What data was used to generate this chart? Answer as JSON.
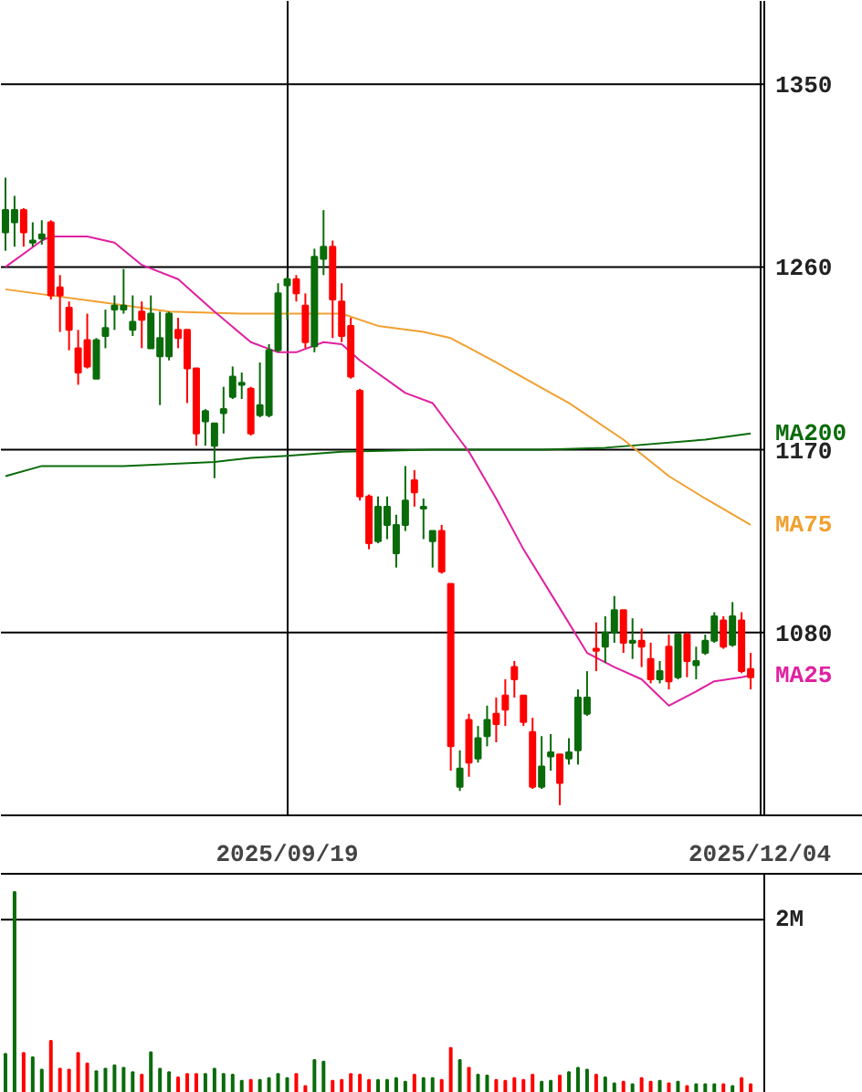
{
  "chart_data": [
    {
      "type": "candlestick",
      "ylim": [
        990,
        1391
      ],
      "yticks": [
        1080,
        1170,
        1260,
        1350
      ],
      "grid": true,
      "categories": [
        null,
        null,
        null,
        null,
        null,
        null,
        null,
        null,
        null,
        null,
        null,
        null,
        null,
        null,
        null,
        null,
        null,
        null,
        null,
        null,
        null,
        null,
        null,
        null,
        null,
        null,
        null,
        null,
        null,
        null,
        null,
        "2025/09/19",
        null,
        null,
        null,
        null,
        null,
        null,
        null,
        null,
        null,
        null,
        null,
        null,
        null,
        null,
        null,
        null,
        null,
        null,
        null,
        null,
        null,
        null,
        null,
        null,
        null,
        null,
        null,
        null,
        null,
        null,
        null,
        null,
        null,
        null,
        null,
        null,
        null,
        null,
        null,
        null,
        null,
        null,
        null,
        null,
        null,
        null,
        null,
        null,
        null,
        null,
        null,
        "2025/12/04"
      ],
      "ohlc": [
        [
          1277,
          1304,
          1268,
          1288
        ],
        [
          1282,
          1295,
          1270,
          1288
        ],
        [
          1288,
          1289,
          1270,
          1277
        ],
        [
          1272,
          1282,
          1270,
          1273
        ],
        [
          1274,
          1283,
          1271,
          1276
        ],
        [
          1282,
          1283,
          1244,
          1246
        ],
        [
          1250,
          1256,
          1228,
          1246
        ],
        [
          1240,
          1243,
          1219,
          1229
        ],
        [
          1220,
          1229,
          1202,
          1208
        ],
        [
          1224,
          1237,
          1210,
          1211
        ],
        [
          1205,
          1225,
          1205,
          1224
        ],
        [
          1226,
          1239,
          1220,
          1230
        ],
        [
          1239,
          1246,
          1229,
          1241
        ],
        [
          1239,
          1259,
          1237,
          1241
        ],
        [
          1229,
          1246,
          1226,
          1233
        ],
        [
          1238,
          1243,
          1220,
          1234
        ],
        [
          1220,
          1246,
          1220,
          1237
        ],
        [
          1216,
          1238,
          1192,
          1225
        ],
        [
          1216,
          1238,
          1214,
          1237
        ],
        [
          1229,
          1235,
          1220,
          1225
        ],
        [
          1229,
          1229,
          1193,
          1210
        ],
        [
          1210,
          1210,
          1172,
          1178
        ],
        [
          1184,
          1190,
          1172,
          1189
        ],
        [
          1172,
          1183,
          1156,
          1183
        ],
        [
          1188,
          1201,
          1178,
          1190
        ],
        [
          1196,
          1211,
          1195,
          1206
        ],
        [
          1202,
          1208,
          1195,
          1203
        ],
        [
          1200,
          1201,
          1177,
          1178
        ],
        [
          1187,
          1213,
          1186,
          1192
        ],
        [
          1187,
          1222,
          1186,
          1219
        ],
        [
          1219,
          1252,
          1218,
          1247
        ],
        [
          1251,
          1255,
          1234,
          1254
        ],
        [
          1254,
          1256,
          1243,
          1247
        ],
        [
          1241,
          1247,
          1220,
          1223
        ],
        [
          1221,
          1269,
          1218,
          1265
        ],
        [
          1264,
          1288,
          1256,
          1270
        ],
        [
          1270,
          1273,
          1225,
          1244
        ],
        [
          1243,
          1252,
          1223,
          1226
        ],
        [
          1231,
          1235,
          1205,
          1206
        ],
        [
          1199,
          1200,
          1145,
          1147
        ],
        [
          1147,
          1148,
          1121,
          1124
        ],
        [
          1125,
          1147,
          1124,
          1142
        ],
        [
          1133,
          1147,
          1126,
          1142
        ],
        [
          1119,
          1138,
          1112,
          1133
        ],
        [
          1133,
          1162,
          1130,
          1145
        ],
        [
          1155,
          1160,
          1142,
          1149
        ],
        [
          1141,
          1146,
          1126,
          1142
        ],
        [
          1125,
          1130,
          1112,
          1130
        ],
        [
          1130,
          1133,
          1109,
          1110
        ],
        [
          1104,
          1104,
          1012,
          1024
        ],
        [
          1004,
          1022,
          1002,
          1013
        ],
        [
          1037,
          1040,
          1009,
          1016
        ],
        [
          1018,
          1034,
          1016,
          1028
        ],
        [
          1029,
          1044,
          1024,
          1037
        ],
        [
          1040,
          1048,
          1026,
          1035
        ],
        [
          1049,
          1057,
          1034,
          1042
        ],
        [
          1063,
          1066,
          1048,
          1057
        ],
        [
          1049,
          1049,
          1034,
          1036
        ],
        [
          1031,
          1038,
          1003,
          1004
        ],
        [
          1004,
          1029,
          1003,
          1014
        ],
        [
          1019,
          1030,
          1012,
          1021
        ],
        [
          1020,
          1020,
          995,
          1006
        ],
        [
          1018,
          1028,
          1015,
          1021
        ],
        [
          1022,
          1052,
          1015,
          1048
        ],
        [
          1040,
          1061,
          1039,
          1048
        ],
        [
          1072,
          1085,
          1061,
          1071
        ],
        [
          1073,
          1088,
          1065,
          1080
        ],
        [
          1080,
          1098,
          1075,
          1091
        ],
        [
          1091,
          1091,
          1070,
          1075
        ],
        [
          1075,
          1087,
          1067,
          1076
        ],
        [
          1076,
          1082,
          1063,
          1073
        ],
        [
          1067,
          1075,
          1055,
          1057
        ],
        [
          1057,
          1066,
          1055,
          1061
        ],
        [
          1073,
          1079,
          1052,
          1056
        ],
        [
          1058,
          1079,
          1057,
          1079
        ],
        [
          1079,
          1080,
          1058,
          1066
        ],
        [
          1064,
          1073,
          1057,
          1066
        ],
        [
          1070,
          1079,
          1069,
          1076
        ],
        [
          1076,
          1090,
          1075,
          1088
        ],
        [
          1086,
          1088,
          1072,
          1073
        ],
        [
          1074,
          1095,
          1073,
          1088
        ],
        [
          1086,
          1090,
          1060,
          1061
        ],
        [
          1062,
          1070,
          1052,
          1058
        ],
        null
      ],
      "colors": [
        "#0a6b0a",
        "#0a6b0a",
        "#ff0000",
        "#0a6b0a",
        "#0a6b0a",
        "#ff0000",
        "#ff0000",
        "#ff0000",
        "#ff0000",
        "#ff0000",
        "#0a6b0a",
        "#0a6b0a",
        "#0a6b0a",
        "#0a6b0a",
        "#0a6b0a",
        "#ff0000",
        "#0a6b0a",
        "#0a6b0a",
        "#0a6b0a",
        "#ff0000",
        "#ff0000",
        "#ff0000",
        "#0a6b0a",
        "#0a6b0a",
        "#0a6b0a",
        "#0a6b0a",
        "#0a6b0a",
        "#ff0000",
        "#0a6b0a",
        "#0a6b0a",
        "#0a6b0a",
        "#0a6b0a",
        "#ff0000",
        "#ff0000",
        "#0a6b0a",
        "#0a6b0a",
        "#ff0000",
        "#ff0000",
        "#ff0000",
        "#ff0000",
        "#ff0000",
        "#0a6b0a",
        "#0a6b0a",
        "#0a6b0a",
        "#0a6b0a",
        "#ff0000",
        "#0a6b0a",
        "#0a6b0a",
        "#ff0000",
        "#ff0000",
        "#0a6b0a",
        "#ff0000",
        "#0a6b0a",
        "#0a6b0a",
        "#ff0000",
        "#ff0000",
        "#ff0000",
        "#ff0000",
        "#ff0000",
        "#0a6b0a",
        "#0a6b0a",
        "#ff0000",
        "#0a6b0a",
        "#0a6b0a",
        "#0a6b0a",
        "#ff0000",
        "#0a6b0a",
        "#0a6b0a",
        "#ff0000",
        "#0a6b0a",
        "#ff0000",
        "#ff0000",
        "#0a6b0a",
        "#ff0000",
        "#0a6b0a",
        "#ff0000",
        "#0a6b0a",
        "#0a6b0a",
        "#0a6b0a",
        "#ff0000",
        "#0a6b0a",
        "#ff0000",
        "#ff0000",
        null
      ],
      "series": [
        {
          "type": "line",
          "name": "MA200",
          "color": "#0a6b0a",
          "values": [
            1157,
            null,
            null,
            null,
            1162,
            null,
            null,
            null,
            null,
            null,
            null,
            null,
            null,
            1162,
            null,
            null,
            null,
            null,
            null,
            null,
            null,
            null,
            null,
            1164,
            null,
            null,
            null,
            1166,
            null,
            null,
            null,
            1167,
            null,
            null,
            null,
            null,
            null,
            1169,
            null,
            null,
            null,
            null,
            null,
            null,
            null,
            null,
            null,
            1170,
            null,
            null,
            null,
            null,
            null,
            null,
            null,
            null,
            null,
            null,
            null,
            1170,
            null,
            null,
            null,
            null,
            null,
            null,
            1171,
            null,
            null,
            null,
            null,
            null,
            null,
            null,
            null,
            null,
            null,
            1175,
            null,
            null,
            null,
            null,
            1178,
            null
          ]
        },
        {
          "type": "line",
          "name": "MA75",
          "color": "#f0a030",
          "values": [
            1249,
            null,
            null,
            null,
            null,
            null,
            null,
            null,
            null,
            null,
            1243,
            null,
            null,
            null,
            null,
            null,
            null,
            null,
            1238,
            null,
            null,
            null,
            null,
            null,
            null,
            null,
            1237,
            null,
            null,
            null,
            null,
            null,
            1237,
            null,
            null,
            null,
            null,
            1237,
            null,
            null,
            null,
            1231,
            null,
            null,
            null,
            null,
            1228,
            null,
            null,
            1225,
            null,
            null,
            null,
            null,
            1213,
            null,
            null,
            null,
            null,
            null,
            1198,
            null,
            1193,
            null,
            null,
            null,
            null,
            null,
            1175,
            null,
            null,
            null,
            null,
            1157,
            null,
            null,
            null,
            1146,
            null,
            null,
            null,
            null,
            1133,
            null
          ]
        },
        {
          "type": "line",
          "name": "MA25",
          "color": "#e020a0",
          "values": [
            1260,
            null,
            null,
            null,
            1273,
            1275,
            null,
            null,
            null,
            1275,
            null,
            null,
            1272,
            null,
            null,
            1261,
            null,
            null,
            null,
            1254,
            null,
            null,
            null,
            1238,
            null,
            null,
            null,
            1223,
            null,
            null,
            1218,
            null,
            1218,
            null,
            null,
            1223,
            null,
            1222,
            null,
            1214,
            null,
            null,
            null,
            null,
            1198,
            null,
            null,
            1193,
            null,
            null,
            1175,
            1169,
            null,
            null,
            1146,
            null,
            null,
            1121,
            null,
            null,
            null,
            1092,
            null,
            null,
            1070,
            null,
            null,
            1063,
            null,
            null,
            1057,
            null,
            null,
            1044,
            null,
            null,
            1051,
            null,
            1056,
            null,
            null,
            1058,
            1059,
            null
          ]
        }
      ]
    },
    {
      "type": "bar",
      "ylim": [
        0,
        2.53
      ],
      "yticks": [
        {
          "value": 2,
          "label": "2M"
        }
      ],
      "grid": "y",
      "tick_labels": "y",
      "categories": [
        null,
        null,
        null,
        null,
        null,
        null,
        null,
        null,
        null,
        null,
        null,
        null,
        null,
        null,
        null,
        null,
        null,
        null,
        null,
        null,
        null,
        null,
        null,
        null,
        null,
        null,
        null,
        null,
        null,
        null,
        null,
        "2025/09/19",
        null,
        null,
        null,
        null,
        null,
        null,
        null,
        null,
        null,
        null,
        null,
        null,
        null,
        null,
        null,
        null,
        null,
        null,
        null,
        null,
        null,
        null,
        null,
        null,
        null,
        null,
        null,
        null,
        null,
        null,
        null,
        null,
        null,
        null,
        null,
        null,
        null,
        null,
        null,
        null,
        null,
        null,
        null,
        null,
        null,
        null,
        null,
        null,
        null,
        null,
        null,
        "2025/12/04"
      ],
      "values": [
        0.45,
        2.32,
        0.46,
        0.41,
        0.27,
        0.6,
        0.28,
        0.27,
        0.46,
        0.34,
        0.25,
        0.28,
        0.32,
        0.29,
        0.24,
        0.21,
        0.47,
        0.28,
        0.24,
        0.18,
        0.22,
        0.22,
        0.22,
        0.28,
        0.22,
        0.21,
        0.14,
        0.15,
        0.15,
        0.17,
        0.22,
        0.17,
        0.22,
        0.08,
        0.38,
        0.36,
        0.14,
        0.15,
        0.22,
        0.21,
        0.15,
        0.15,
        0.15,
        0.17,
        0.13,
        0.21,
        0.17,
        0.17,
        0.15,
        0.52,
        0.38,
        0.29,
        0.21,
        0.2,
        0.15,
        0.14,
        0.17,
        0.15,
        0.21,
        0.13,
        0.14,
        0.2,
        0.24,
        0.29,
        0.27,
        0.21,
        0.18,
        0.11,
        0.13,
        0.1,
        0.17,
        0.13,
        0.14,
        0.11,
        0.13,
        0.08,
        0.1,
        0.1,
        0.1,
        0.1,
        0.08,
        0.17,
        0.1,
        null
      ],
      "colors": [
        "#0a6b0a",
        "#0a6b0a",
        "#ff0000",
        "#0a6b0a",
        "#0a6b0a",
        "#ff0000",
        "#ff0000",
        "#ff0000",
        "#ff0000",
        "#ff0000",
        "#0a6b0a",
        "#0a6b0a",
        "#0a6b0a",
        "#0a6b0a",
        "#0a6b0a",
        "#ff0000",
        "#0a6b0a",
        "#0a6b0a",
        "#0a6b0a",
        "#ff0000",
        "#ff0000",
        "#ff0000",
        "#0a6b0a",
        "#0a6b0a",
        "#0a6b0a",
        "#0a6b0a",
        "#0a6b0a",
        "#ff0000",
        "#0a6b0a",
        "#0a6b0a",
        "#0a6b0a",
        "#0a6b0a",
        "#ff0000",
        "#ff0000",
        "#0a6b0a",
        "#0a6b0a",
        "#ff0000",
        "#ff0000",
        "#ff0000",
        "#ff0000",
        "#ff0000",
        "#0a6b0a",
        "#0a6b0a",
        "#0a6b0a",
        "#0a6b0a",
        "#ff0000",
        "#0a6b0a",
        "#0a6b0a",
        "#ff0000",
        "#ff0000",
        "#0a6b0a",
        "#ff0000",
        "#0a6b0a",
        "#0a6b0a",
        "#ff0000",
        "#ff0000",
        "#ff0000",
        "#ff0000",
        "#ff0000",
        "#0a6b0a",
        "#0a6b0a",
        "#ff0000",
        "#0a6b0a",
        "#0a6b0a",
        "#0a6b0a",
        "#ff0000",
        "#0a6b0a",
        "#0a6b0a",
        "#ff0000",
        "#0a6b0a",
        "#ff0000",
        "#ff0000",
        "#0a6b0a",
        "#ff0000",
        "#0a6b0a",
        "#ff0000",
        "#0a6b0a",
        "#0a6b0a",
        "#0a6b0a",
        "#ff0000",
        "#0a6b0a",
        "#ff0000",
        "#ff0000",
        null
      ]
    }
  ]
}
